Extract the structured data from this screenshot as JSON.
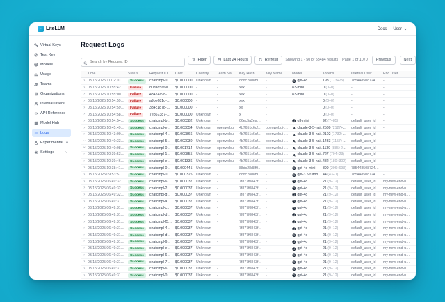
{
  "titlebar": {
    "brand": "LiteLLM",
    "docs_label": "Docs",
    "user_label": "User"
  },
  "sidebar": {
    "items": [
      {
        "label": "Virtual Keys",
        "icon": "key-icon",
        "active": false,
        "collapsible": false
      },
      {
        "label": "Test Key",
        "icon": "test-key-icon",
        "active": false,
        "collapsible": false
      },
      {
        "label": "Models",
        "icon": "models-icon",
        "active": false,
        "collapsible": false
      },
      {
        "label": "Usage",
        "icon": "usage-icon",
        "active": false,
        "collapsible": false
      },
      {
        "label": "Teams",
        "icon": "teams-icon",
        "active": false,
        "collapsible": false
      },
      {
        "label": "Organizations",
        "icon": "organizations-icon",
        "active": false,
        "collapsible": false
      },
      {
        "label": "Internal Users",
        "icon": "internal-users-icon",
        "active": false,
        "collapsible": false
      },
      {
        "label": "API Reference",
        "icon": "api-reference-icon",
        "active": false,
        "collapsible": false
      },
      {
        "label": "Model Hub",
        "icon": "model-hub-icon",
        "active": false,
        "collapsible": false
      },
      {
        "label": "Logs",
        "icon": "logs-icon",
        "active": true,
        "collapsible": false
      },
      {
        "label": "Experimental",
        "icon": "experimental-icon",
        "active": false,
        "collapsible": true
      },
      {
        "label": "Settings",
        "icon": "settings-icon",
        "active": false,
        "collapsible": true
      }
    ]
  },
  "page": {
    "title": "Request Logs"
  },
  "toolbar": {
    "search_placeholder": "Search by Request ID",
    "filter_label": "Filter",
    "range_label": "Last 24 Hours",
    "refresh_label": "Refresh"
  },
  "pagination": {
    "showing": "Showing 1 - 50 of 53484 results",
    "page": "Page 1 of 1070",
    "previous_label": "Previous",
    "next_label": "Next"
  },
  "colors": {
    "brand_teal": "#18b2d2",
    "active_blue": "#2563eb",
    "success_bg": "#d9f2e5",
    "success_text": "#15803d",
    "failure_bg": "#fee2e2",
    "failure_text": "#b91c1c"
  },
  "table": {
    "columns": [
      "Time",
      "Status",
      "Request ID",
      "Cost",
      "Country",
      "Team Name",
      "Key Hash",
      "Key Name",
      "Model",
      "Tokens",
      "Internal User",
      "End User"
    ],
    "rows": [
      {
        "time": "03/15/2025 11:02:10 AM",
        "status": "Success",
        "request_id": "chatcmpl-0007...",
        "cost": "$0.000000",
        "country": "Unknown",
        "team": "-",
        "key_hash": "88dc28d8f938d...",
        "key_name": "-",
        "model": "gpt-4o",
        "provider": "openai",
        "tokens": "198",
        "tokens_detail": "(173+25)",
        "internal_user": "7854485087248...",
        "end_user": "-",
        "expanded": false
      },
      {
        "time": "03/15/2025 10:55:42 AM",
        "status": "Failure",
        "request_id": "d0dad5af-eb08...",
        "cost": "$0.000000",
        "country": "-",
        "team": "-",
        "key_hash": "xxx",
        "key_name": "-",
        "model": "o3-mini",
        "provider": "",
        "tokens": "0",
        "tokens_detail": "(0+0)",
        "internal_user": "-",
        "end_user": "-",
        "expanded": false
      },
      {
        "time": "03/15/2025 10:55:00 AM",
        "status": "Failure",
        "request_id": "43474a9b-3186...",
        "cost": "$0.000000",
        "country": "-",
        "team": "-",
        "key_hash": "xxx",
        "key_name": "-",
        "model": "o3-mini",
        "provider": "",
        "tokens": "0",
        "tokens_detail": "(0+0)",
        "internal_user": "-",
        "end_user": "-",
        "expanded": false
      },
      {
        "time": "03/15/2025 10:54:59 AM",
        "status": "Failure",
        "request_id": "a9be681d-b8b8...",
        "cost": "$0.000000",
        "country": "-",
        "team": "-",
        "key_hash": "xxx",
        "key_name": "-",
        "model": "",
        "provider": "",
        "tokens": "0",
        "tokens_detail": "(0+0)",
        "internal_user": "-",
        "end_user": "-",
        "expanded": false
      },
      {
        "time": "03/15/2025 10:54:59 AM",
        "status": "Failure",
        "request_id": "334c187d-4b4e...",
        "cost": "$0.000000",
        "country": "-",
        "team": "-",
        "key_hash": "xx",
        "key_name": "-",
        "model": "",
        "provider": "",
        "tokens": "0",
        "tokens_detail": "(0+0)",
        "internal_user": "-",
        "end_user": "-",
        "expanded": false
      },
      {
        "time": "03/15/2025 10:54:58 AM",
        "status": "Failure",
        "request_id": "7eb67387-bcc2...",
        "cost": "$0.000000",
        "country": "Unknown",
        "team": "-",
        "key_hash": "x",
        "key_name": "-",
        "model": "",
        "provider": "",
        "tokens": "0",
        "tokens_detail": "(0+0)",
        "internal_user": "-",
        "end_user": "-",
        "expanded": false
      },
      {
        "time": "03/15/2025 10:54:54 AM",
        "status": "Success",
        "request_id": "chatcmpl-b87e...",
        "cost": "$0.000382",
        "country": "Unknown",
        "team": "-",
        "key_hash": "06ec5a2eac77d...",
        "key_name": "-",
        "model": "o3-mini",
        "provider": "openai",
        "tokens": "92",
        "tokens_detail": "(7+85)",
        "internal_user": "default_user_id",
        "end_user": "-",
        "expanded": false
      },
      {
        "time": "03/15/2025 10:45:49 AM",
        "status": "Success",
        "request_id": "chatcmpl-ebbe...",
        "cost": "$0.003054",
        "country": "Unknown",
        "team": "openwebui",
        "key_hash": "4b7651c6cf77f...",
        "key_name": "openwebui-key-2",
        "model": "claude-3-5-hai...",
        "provider": "anthropic",
        "tokens": "2580",
        "tokens_detail": "(2127+453)",
        "internal_user": "default_user_id",
        "end_user": "-",
        "expanded": false
      },
      {
        "time": "03/15/2025 10:43:00 AM",
        "status": "Success",
        "request_id": "chatcmpl-4177...",
        "cost": "$0.002866",
        "country": "Unknown",
        "team": "openwebui",
        "key_hash": "4b7651c6cf77f...",
        "key_name": "openwebui-key-2",
        "model": "claude-3-5-hai...",
        "provider": "anthropic",
        "tokens": "2102",
        "tokens_detail": "(1732+370)",
        "internal_user": "default_user_id",
        "end_user": "-",
        "expanded": false
      },
      {
        "time": "03/15/2025 10:40:33 AM",
        "status": "Success",
        "request_id": "chatcmpl-5898...",
        "cost": "$0.002030",
        "country": "Unknown",
        "team": "openwebui",
        "key_hash": "4b7651c6cf77f...",
        "key_name": "openwebui-key-2",
        "model": "claude-3-5-hai...",
        "provider": "anthropic",
        "tokens": "1433",
        "tokens_detail": "(1157+276)",
        "internal_user": "default_user_id",
        "end_user": "-",
        "expanded": true
      },
      {
        "time": "03/15/2025 10:40:08 AM",
        "status": "Success",
        "request_id": "chatcmpl-083a...",
        "cost": "$0.001714",
        "country": "Unknown",
        "team": "openwebui",
        "key_hash": "4b7651c6cf77f...",
        "key_name": "openwebui-key-2",
        "model": "claude-3-5-hai...",
        "provider": "anthropic",
        "tokens": "1139",
        "tokens_detail": "(885+254)",
        "internal_user": "default_user_id",
        "end_user": "-",
        "expanded": true
      },
      {
        "time": "03/15/2025 10:39:53 AM",
        "status": "Success",
        "request_id": "chatcmpl-1748...",
        "cost": "$0.000855",
        "country": "Unknown",
        "team": "openwebui",
        "key_hash": "4b7651c6cf77f...",
        "key_name": "openwebui-key-2",
        "model": "claude-3-5-hai...",
        "provider": "anthropic",
        "tokens": "727",
        "tokens_detail": "(704+23)",
        "internal_user": "default_user_id",
        "end_user": "-",
        "expanded": false
      },
      {
        "time": "03/15/2025 10:39:46 AM",
        "status": "Success",
        "request_id": "chatcmpl-eaa6...",
        "cost": "$0.001336",
        "country": "Unknown",
        "team": "openwebui",
        "key_hash": "4b7651c6cf77f...",
        "key_name": "openwebui-key-2",
        "model": "claude-3-5-hai...",
        "provider": "anthropic",
        "tokens": "482",
        "tokens_detail": "(180+302)",
        "internal_user": "default_user_id",
        "end_user": "-",
        "expanded": false
      },
      {
        "time": "03/15/2025 10:38:41 AM",
        "status": "Success",
        "request_id": "chatcmpl-00f1...",
        "cost": "$0.000445",
        "country": "Unknown",
        "team": "-",
        "key_hash": "88dc28d8f938d...",
        "key_name": "-",
        "model": "gpt-4o-mini",
        "provider": "openai",
        "tokens": "899",
        "tokens_detail": "(206+693)",
        "internal_user": "7854485087248...",
        "end_user": "-",
        "expanded": false
      },
      {
        "time": "03/15/2025 09:53:57 AM",
        "status": "Success",
        "request_id": "chatcmpl-00f3...",
        "cost": "$0.000325",
        "country": "Unknown",
        "team": "-",
        "key_hash": "88dc28d8f938d...",
        "key_name": "-",
        "model": "gpt-3.5-turbo",
        "provider": "openai",
        "tokens": "44",
        "tokens_detail": "(43+1)",
        "internal_user": "7854485087248...",
        "end_user": "-",
        "expanded": false
      },
      {
        "time": "03/15/2025 06:49:32 AM",
        "status": "Success",
        "request_id": "chatcmpl-6db7...",
        "cost": "$0.000037",
        "country": "Unknown",
        "team": "-",
        "key_hash": "7f877f0843f1e...",
        "key_name": "-",
        "model": "gpt-4o",
        "provider": "openai",
        "tokens": "21",
        "tokens_detail": "(9+12)",
        "internal_user": "default_user_id",
        "end_user": "my-new-end-user-1",
        "expanded": false
      },
      {
        "time": "03/15/2025 06:49:32 AM",
        "status": "Success",
        "request_id": "chatcmpl-2d8f...",
        "cost": "$0.000037",
        "country": "Unknown",
        "team": "-",
        "key_hash": "7f877f0843f1e...",
        "key_name": "-",
        "model": "gpt-4o",
        "provider": "openai",
        "tokens": "21",
        "tokens_detail": "(9+12)",
        "internal_user": "default_user_id",
        "end_user": "my-new-end-user-1",
        "expanded": false
      },
      {
        "time": "03/15/2025 06:49:32 AM",
        "status": "Success",
        "request_id": "chatcmpl-d52a...",
        "cost": "$0.000037",
        "country": "Unknown",
        "team": "-",
        "key_hash": "7f877f0843f1e...",
        "key_name": "-",
        "model": "gpt-4o",
        "provider": "openai",
        "tokens": "21",
        "tokens_detail": "(9+12)",
        "internal_user": "default_user_id",
        "end_user": "my-new-end-user-1",
        "expanded": false
      },
      {
        "time": "03/15/2025 06:49:31 AM",
        "status": "Success",
        "request_id": "chatcmpl-a007...",
        "cost": "$0.000037",
        "country": "Unknown",
        "team": "-",
        "key_hash": "7f877f0843f1e...",
        "key_name": "-",
        "model": "gpt-4o",
        "provider": "openai",
        "tokens": "21",
        "tokens_detail": "(9+12)",
        "internal_user": "default_user_id",
        "end_user": "my-new-end-user-1",
        "expanded": false
      },
      {
        "time": "03/15/2025 06:49:31 AM",
        "status": "Success",
        "request_id": "chatcmpl-cd3b...",
        "cost": "$0.000037",
        "country": "Unknown",
        "team": "-",
        "key_hash": "7f877f0843f1e...",
        "key_name": "-",
        "model": "gpt-4o",
        "provider": "openai",
        "tokens": "21",
        "tokens_detail": "(9+12)",
        "internal_user": "default_user_id",
        "end_user": "my-new-end-user-1",
        "expanded": false
      },
      {
        "time": "03/15/2025 06:49:31 AM",
        "status": "Success",
        "request_id": "chatcmpl-da61...",
        "cost": "$0.000037",
        "country": "Unknown",
        "team": "-",
        "key_hash": "7f877f0843f1e...",
        "key_name": "-",
        "model": "gpt-4o",
        "provider": "openai",
        "tokens": "21",
        "tokens_detail": "(9+12)",
        "internal_user": "default_user_id",
        "end_user": "my-new-end-user-1",
        "expanded": false
      },
      {
        "time": "03/15/2025 06:49:31 AM",
        "status": "Success",
        "request_id": "chatcmpl-f5e7...",
        "cost": "$0.000037",
        "country": "Unknown",
        "team": "-",
        "key_hash": "7f877f0843f1e...",
        "key_name": "-",
        "model": "gpt-4o",
        "provider": "openai",
        "tokens": "21",
        "tokens_detail": "(9+12)",
        "internal_user": "default_user_id",
        "end_user": "my-new-end-user-1",
        "expanded": false
      },
      {
        "time": "03/15/2025 06:49:31 AM",
        "status": "Success",
        "request_id": "chatcmpl-43e9...",
        "cost": "$0.000037",
        "country": "Unknown",
        "team": "-",
        "key_hash": "7f877f0843f1e...",
        "key_name": "-",
        "model": "gpt-4o",
        "provider": "openai",
        "tokens": "21",
        "tokens_detail": "(9+12)",
        "internal_user": "default_user_id",
        "end_user": "my-new-end-user-1",
        "expanded": false
      },
      {
        "time": "03/15/2025 06:49:31 AM",
        "status": "Success",
        "request_id": "chatcmpl-d865...",
        "cost": "$0.000037",
        "country": "Unknown",
        "team": "-",
        "key_hash": "7f877f0843f1e...",
        "key_name": "-",
        "model": "gpt-4o",
        "provider": "openai",
        "tokens": "21",
        "tokens_detail": "(9+12)",
        "internal_user": "default_user_id",
        "end_user": "my-new-end-user-1",
        "expanded": false
      },
      {
        "time": "03/15/2025 06:49:31 AM",
        "status": "Success",
        "request_id": "chatcmpl-6ed8...",
        "cost": "$0.000037",
        "country": "Unknown",
        "team": "-",
        "key_hash": "7f877f0843f1e...",
        "key_name": "-",
        "model": "gpt-4o",
        "provider": "openai",
        "tokens": "21",
        "tokens_detail": "(9+12)",
        "internal_user": "default_user_id",
        "end_user": "my-new-end-user-1",
        "expanded": false
      },
      {
        "time": "03/15/2025 06:49:31 AM",
        "status": "Success",
        "request_id": "chatcmpl-e891...",
        "cost": "$0.000037",
        "country": "Unknown",
        "team": "-",
        "key_hash": "7f877f0843f1e...",
        "key_name": "-",
        "model": "gpt-4o",
        "provider": "openai",
        "tokens": "21",
        "tokens_detail": "(9+12)",
        "internal_user": "default_user_id",
        "end_user": "my-new-end-user-1",
        "expanded": false
      },
      {
        "time": "03/15/2025 06:49:31 AM",
        "status": "Success",
        "request_id": "chatcmpl-6cc7...",
        "cost": "$0.000037",
        "country": "Unknown",
        "team": "-",
        "key_hash": "7f877f0843f1e...",
        "key_name": "-",
        "model": "gpt-4o",
        "provider": "openai",
        "tokens": "21",
        "tokens_detail": "(9+12)",
        "internal_user": "default_user_id",
        "end_user": "my-new-end-user-1",
        "expanded": false
      },
      {
        "time": "03/15/2025 06:49:31 AM",
        "status": "Success",
        "request_id": "chatcmpl-77e1...",
        "cost": "$0.000037",
        "country": "Unknown",
        "team": "-",
        "key_hash": "7f877f0843f1e...",
        "key_name": "-",
        "model": "gpt-4o",
        "provider": "openai",
        "tokens": "21",
        "tokens_detail": "(9+12)",
        "internal_user": "default_user_id",
        "end_user": "my-new-end-user-1",
        "expanded": false
      },
      {
        "time": "03/15/2025 06:49:31 AM",
        "status": "Success",
        "request_id": "chatcmpl-6147...",
        "cost": "$0.000037",
        "country": "Unknown",
        "team": "-",
        "key_hash": "7f877f0843f1e...",
        "key_name": "-",
        "model": "gpt-4o",
        "provider": "openai",
        "tokens": "21",
        "tokens_detail": "(9+12)",
        "internal_user": "default_user_id",
        "end_user": "my-new-end-user-1",
        "expanded": false
      },
      {
        "time": "03/15/2025 06:49:31 AM",
        "status": "Success",
        "request_id": "chatcmpl-0968...",
        "cost": "$0.000037",
        "country": "Unknown",
        "team": "-",
        "key_hash": "7f877f0843f1e...",
        "key_name": "-",
        "model": "gpt-4o",
        "provider": "openai",
        "tokens": "21",
        "tokens_detail": "(9+12)",
        "internal_user": "default_user_id",
        "end_user": "my-new-end-user-1",
        "expanded": false
      },
      {
        "time": "03/15/2025 06:49:31 AM",
        "status": "Success",
        "request_id": "chatcmpl-e977...",
        "cost": "$0.000037",
        "country": "Unknown",
        "team": "-",
        "key_hash": "7f877f0843f1e...",
        "key_name": "-",
        "model": "gpt-4o",
        "provider": "openai",
        "tokens": "21",
        "tokens_detail": "(9+12)",
        "internal_user": "default_user_id",
        "end_user": "my-new-end-user-1",
        "expanded": false
      }
    ]
  }
}
